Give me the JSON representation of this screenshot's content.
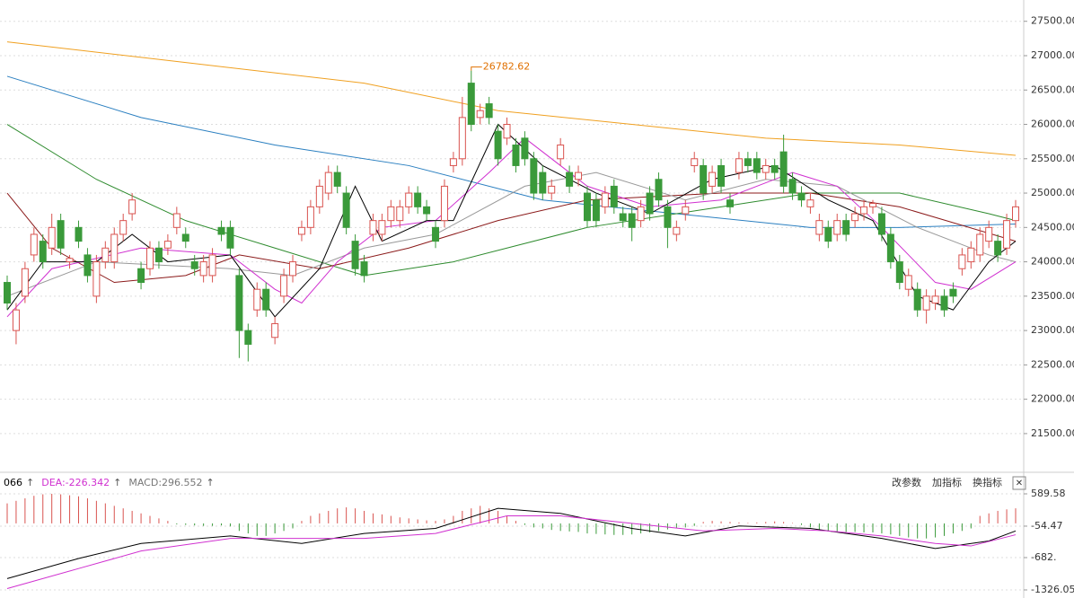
{
  "chart_data": [
    {
      "type": "candlestick",
      "up_color": "#d9534f",
      "down_color": "#3a9a3a",
      "ylim": [
        20950,
        27810
      ],
      "yticks": [
        {
          "value": 21500,
          "label": "21500.00"
        },
        {
          "value": 22000,
          "label": "22000.00"
        },
        {
          "value": 22500,
          "label": "22500.00"
        },
        {
          "value": 23000,
          "label": "23000.00"
        },
        {
          "value": 23500,
          "label": "23500.00"
        },
        {
          "value": 24000,
          "label": "24000.00"
        },
        {
          "value": 24500,
          "label": "24500.00"
        },
        {
          "value": 25000,
          "label": "25000.00"
        },
        {
          "value": 25500,
          "label": "25500.00"
        },
        {
          "value": 26000,
          "label": "26000.00"
        },
        {
          "value": 26500,
          "label": "26500.00"
        },
        {
          "value": 27000,
          "label": "27000.00"
        },
        {
          "value": 27500,
          "label": "27500.00"
        }
      ],
      "grid": true,
      "open": [
        23700,
        23000,
        23500,
        24100,
        24300,
        24200,
        24600,
        24000,
        24500,
        24100,
        23500,
        24000,
        24000,
        24400,
        24700,
        23900,
        23900,
        24200,
        24200,
        24500,
        24400,
        24000,
        23800,
        23800,
        24500,
        24500,
        23800,
        23000,
        23300,
        23600,
        22900,
        23500,
        23800,
        24400,
        24500,
        24800,
        25000,
        25300,
        25000,
        24300,
        24000,
        24400,
        24400,
        24600,
        24600,
        24800,
        25000,
        24800,
        24500,
        24600,
        25400,
        25500,
        26600,
        26100,
        26300,
        25900,
        25800,
        25700,
        25800,
        25500,
        25300,
        25000,
        25500,
        25300,
        25200,
        25000,
        24900,
        24800,
        25100,
        24700,
        24700,
        24600,
        25000,
        25200,
        24800,
        24400,
        24700,
        25400,
        25400,
        25100,
        25400,
        24900,
        25300,
        25500,
        25500,
        25300,
        25400,
        25600,
        25200,
        25000,
        24800,
        24400,
        24500,
        24400,
        24600,
        24600,
        24700,
        24800,
        24700,
        24400,
        24000,
        23600,
        23600,
        23300,
        23400,
        23500,
        23600,
        23900,
        24000,
        24100,
        24300,
        24300,
        24200,
        24600
      ],
      "close": [
        23400,
        23300,
        23900,
        24400,
        24000,
        24500,
        24200,
        24050,
        24300,
        23800,
        24000,
        24200,
        24400,
        24600,
        24900,
        23700,
        24200,
        24000,
        24300,
        24700,
        24300,
        23900,
        24000,
        24100,
        24400,
        24200,
        23000,
        22800,
        23600,
        23300,
        23100,
        23800,
        24000,
        24500,
        24800,
        25100,
        25300,
        25100,
        24500,
        23900,
        23800,
        24600,
        24600,
        24800,
        24800,
        25000,
        24800,
        24700,
        24300,
        25100,
        25500,
        26100,
        26000,
        26200,
        26100,
        25500,
        26000,
        25400,
        25500,
        25000,
        25000,
        25100,
        25700,
        25100,
        25300,
        24600,
        24600,
        25000,
        24800,
        24600,
        24500,
        24800,
        24700,
        24900,
        24500,
        24500,
        24800,
        25500,
        25000,
        25300,
        25100,
        24800,
        25500,
        25400,
        25300,
        25400,
        25300,
        25100,
        25000,
        24900,
        24900,
        24600,
        24300,
        24600,
        24400,
        24700,
        24800,
        24850,
        24400,
        24000,
        23700,
        23800,
        23300,
        23500,
        23500,
        23300,
        23500,
        24100,
        24200,
        24400,
        24500,
        24100,
        24600,
        24800
      ],
      "high": [
        23800,
        23400,
        24000,
        24500,
        24400,
        24700,
        24700,
        24100,
        24600,
        24200,
        24100,
        24300,
        24500,
        24700,
        25000,
        24000,
        24300,
        24300,
        24400,
        24800,
        24500,
        24100,
        24100,
        24200,
        24600,
        24600,
        23900,
        23100,
        23700,
        23700,
        23200,
        23900,
        24100,
        24600,
        24900,
        25200,
        25400,
        25400,
        25100,
        24400,
        24100,
        24700,
        24700,
        24900,
        24900,
        25100,
        25100,
        24900,
        24600,
        25200,
        25600,
        26400,
        26782.62,
        26300,
        26400,
        26000,
        26100,
        25800,
        25900,
        25600,
        25400,
        25200,
        25800,
        25400,
        25400,
        25100,
        25000,
        25100,
        25200,
        24800,
        24800,
        24900,
        25100,
        25300,
        24900,
        24600,
        24900,
        25600,
        25500,
        25400,
        25500,
        25000,
        25600,
        25600,
        25600,
        25500,
        25500,
        25850,
        25300,
        25100,
        25000,
        24700,
        24600,
        24700,
        24700,
        24800,
        24900,
        24900,
        24800,
        24500,
        24100,
        23900,
        23700,
        23600,
        23600,
        23600,
        23700,
        24200,
        24300,
        24500,
        24600,
        24400,
        24700,
        24900
      ],
      "low": [
        23300,
        22800,
        23400,
        24000,
        23900,
        24100,
        24100,
        23900,
        24200,
        23700,
        23400,
        23900,
        23900,
        24300,
        24600,
        23600,
        23800,
        23900,
        24100,
        24400,
        24200,
        23800,
        23700,
        23700,
        24300,
        24100,
        22600,
        22550,
        23200,
        23200,
        22800,
        23400,
        23700,
        24300,
        24400,
        24700,
        24900,
        25000,
        24400,
        23800,
        23700,
        24300,
        24300,
        24500,
        24500,
        24700,
        24700,
        24600,
        24200,
        24500,
        25300,
        25400,
        25900,
        26000,
        26000,
        25400,
        25700,
        25300,
        25400,
        24900,
        24900,
        24900,
        25400,
        25000,
        25100,
        24500,
        24500,
        24700,
        24700,
        24500,
        24300,
        24500,
        24600,
        24800,
        24200,
        24300,
        24600,
        25300,
        24900,
        25000,
        25000,
        24700,
        25200,
        25300,
        25200,
        25200,
        25200,
        25000,
        24900,
        24800,
        24700,
        24300,
        24200,
        24300,
        24300,
        24500,
        24600,
        24700,
        24300,
        23900,
        23600,
        23500,
        23200,
        23100,
        23300,
        23200,
        23400,
        23800,
        23900,
        24000,
        24200,
        24000,
        24100,
        24500
      ],
      "series": [
        {
          "color": "#f0a020",
          "x": [
            0,
            20,
            40,
            55,
            70,
            85,
            100,
            113
          ],
          "values": [
            27200,
            26900,
            26600,
            26200,
            26000,
            25800,
            25700,
            25550
          ]
        },
        {
          "color": "#2a7fc0",
          "x": [
            0,
            15,
            30,
            45,
            60,
            75,
            90,
            100,
            113
          ],
          "values": [
            26700,
            26100,
            25700,
            25400,
            24900,
            24700,
            24500,
            24500,
            24550
          ]
        },
        {
          "color": "#2e8b2e",
          "x": [
            0,
            10,
            20,
            30,
            40,
            50,
            65,
            80,
            90,
            100,
            110,
            113
          ],
          "values": [
            26000,
            25200,
            24600,
            24200,
            23800,
            24000,
            24500,
            24800,
            25000,
            25000,
            24700,
            24600
          ]
        },
        {
          "color": "#8b1a1a",
          "x": [
            0,
            5,
            12,
            20,
            26,
            35,
            45,
            55,
            65,
            80,
            90,
            100,
            113
          ],
          "values": [
            25000,
            24200,
            23700,
            23800,
            24100,
            23900,
            24200,
            24600,
            24900,
            25000,
            25000,
            24800,
            24300
          ]
        },
        {
          "color": "#999999",
          "x": [
            0,
            10,
            25,
            32,
            40,
            48,
            58,
            66,
            76,
            85,
            93,
            102,
            110,
            113
          ],
          "values": [
            23500,
            24000,
            23900,
            23800,
            24200,
            24400,
            25100,
            25300,
            24900,
            25200,
            25100,
            24500,
            24100,
            24000
          ]
        },
        {
          "color": "#d030d0",
          "x": [
            0,
            5,
            15,
            25,
            30,
            33,
            37,
            42,
            48,
            54,
            58,
            65,
            72,
            80,
            88,
            93,
            98,
            104,
            108,
            113
          ],
          "values": [
            23200,
            23900,
            24200,
            24100,
            23600,
            23400,
            24000,
            24500,
            24600,
            25300,
            25800,
            25100,
            24800,
            24900,
            25300,
            25100,
            24500,
            23700,
            23600,
            24000
          ]
        },
        {
          "color": "#000000",
          "x": [
            0,
            4,
            10,
            14,
            18,
            25,
            30,
            35,
            39,
            42,
            47,
            50,
            55,
            60,
            66,
            72,
            79,
            86,
            92,
            97,
            102,
            106,
            110,
            113
          ],
          "values": [
            23300,
            24000,
            24000,
            24400,
            24000,
            24100,
            23200,
            23900,
            25100,
            24300,
            24600,
            24600,
            26000,
            25400,
            25000,
            24700,
            25200,
            25400,
            24900,
            24600,
            23500,
            23300,
            24000,
            24300
          ]
        }
      ]
    },
    {
      "type": "macd",
      "ylim": [
        -1416,
        679
      ],
      "yticks": [
        589.58,
        -54.47,
        {
          "value": -682,
          "label": "-682."
        },
        -1326.05
      ],
      "grid": true,
      "up_color": "#d9534f",
      "down_color": "#3a9a3a",
      "values": [
        400,
        450,
        500,
        550,
        580,
        590,
        580,
        560,
        540,
        500,
        450,
        400,
        350,
        300,
        250,
        200,
        150,
        100,
        50,
        -20,
        -30,
        -40,
        -50,
        -50,
        -40,
        -60,
        -150,
        -200,
        -250,
        -250,
        -200,
        -150,
        -100,
        50,
        150,
        200,
        250,
        300,
        320,
        300,
        250,
        200,
        180,
        150,
        120,
        100,
        80,
        60,
        50,
        80,
        150,
        250,
        300,
        350,
        300,
        250,
        150,
        50,
        -30,
        -80,
        -100,
        -130,
        -150,
        -160,
        -170,
        -200,
        -210,
        -220,
        -230,
        -230,
        -220,
        -200,
        -180,
        -150,
        -120,
        -100,
        -80,
        -50,
        30,
        50,
        40,
        30,
        20,
        10,
        20,
        30,
        40,
        30,
        10,
        -30,
        -80,
        -120,
        -150,
        -160,
        -170,
        -170,
        -180,
        -180,
        -200,
        -220,
        -250,
        -280,
        -300,
        -300,
        -280,
        -250,
        -200,
        -150,
        -100,
        150,
        200,
        250,
        280,
        300
      ],
      "legend": [
        {
          "label": "066",
          "arrow": "↑",
          "color": "#000000"
        },
        {
          "label": "DEA:-226.342",
          "arrow": "↑",
          "color": "#d030d0"
        },
        {
          "label": "MACD:296.552",
          "arrow": "↑",
          "color": "#777777"
        }
      ],
      "series": [
        {
          "color": "#000000",
          "x": [
            0,
            8,
            15,
            25,
            33,
            40,
            48,
            55,
            62,
            70,
            76,
            82,
            90,
            98,
            104,
            110,
            113
          ],
          "values": [
            -1100,
            -700,
            -400,
            -250,
            -400,
            -200,
            -100,
            300,
            200,
            -100,
            -250,
            -50,
            -100,
            -300,
            -500,
            -350,
            -150
          ]
        },
        {
          "color": "#d030d0",
          "x": [
            0,
            8,
            15,
            25,
            33,
            40,
            48,
            56,
            62,
            70,
            78,
            86,
            92,
            98,
            104,
            108,
            113
          ],
          "values": [
            -1300,
            -900,
            -550,
            -300,
            -300,
            -300,
            -200,
            150,
            150,
            0,
            -150,
            -100,
            -150,
            -250,
            -400,
            -450,
            -226.342
          ]
        }
      ]
    }
  ],
  "toolbar": {
    "buttons": [
      "改参数",
      "加指标",
      "换指标"
    ],
    "close": "✕"
  }
}
